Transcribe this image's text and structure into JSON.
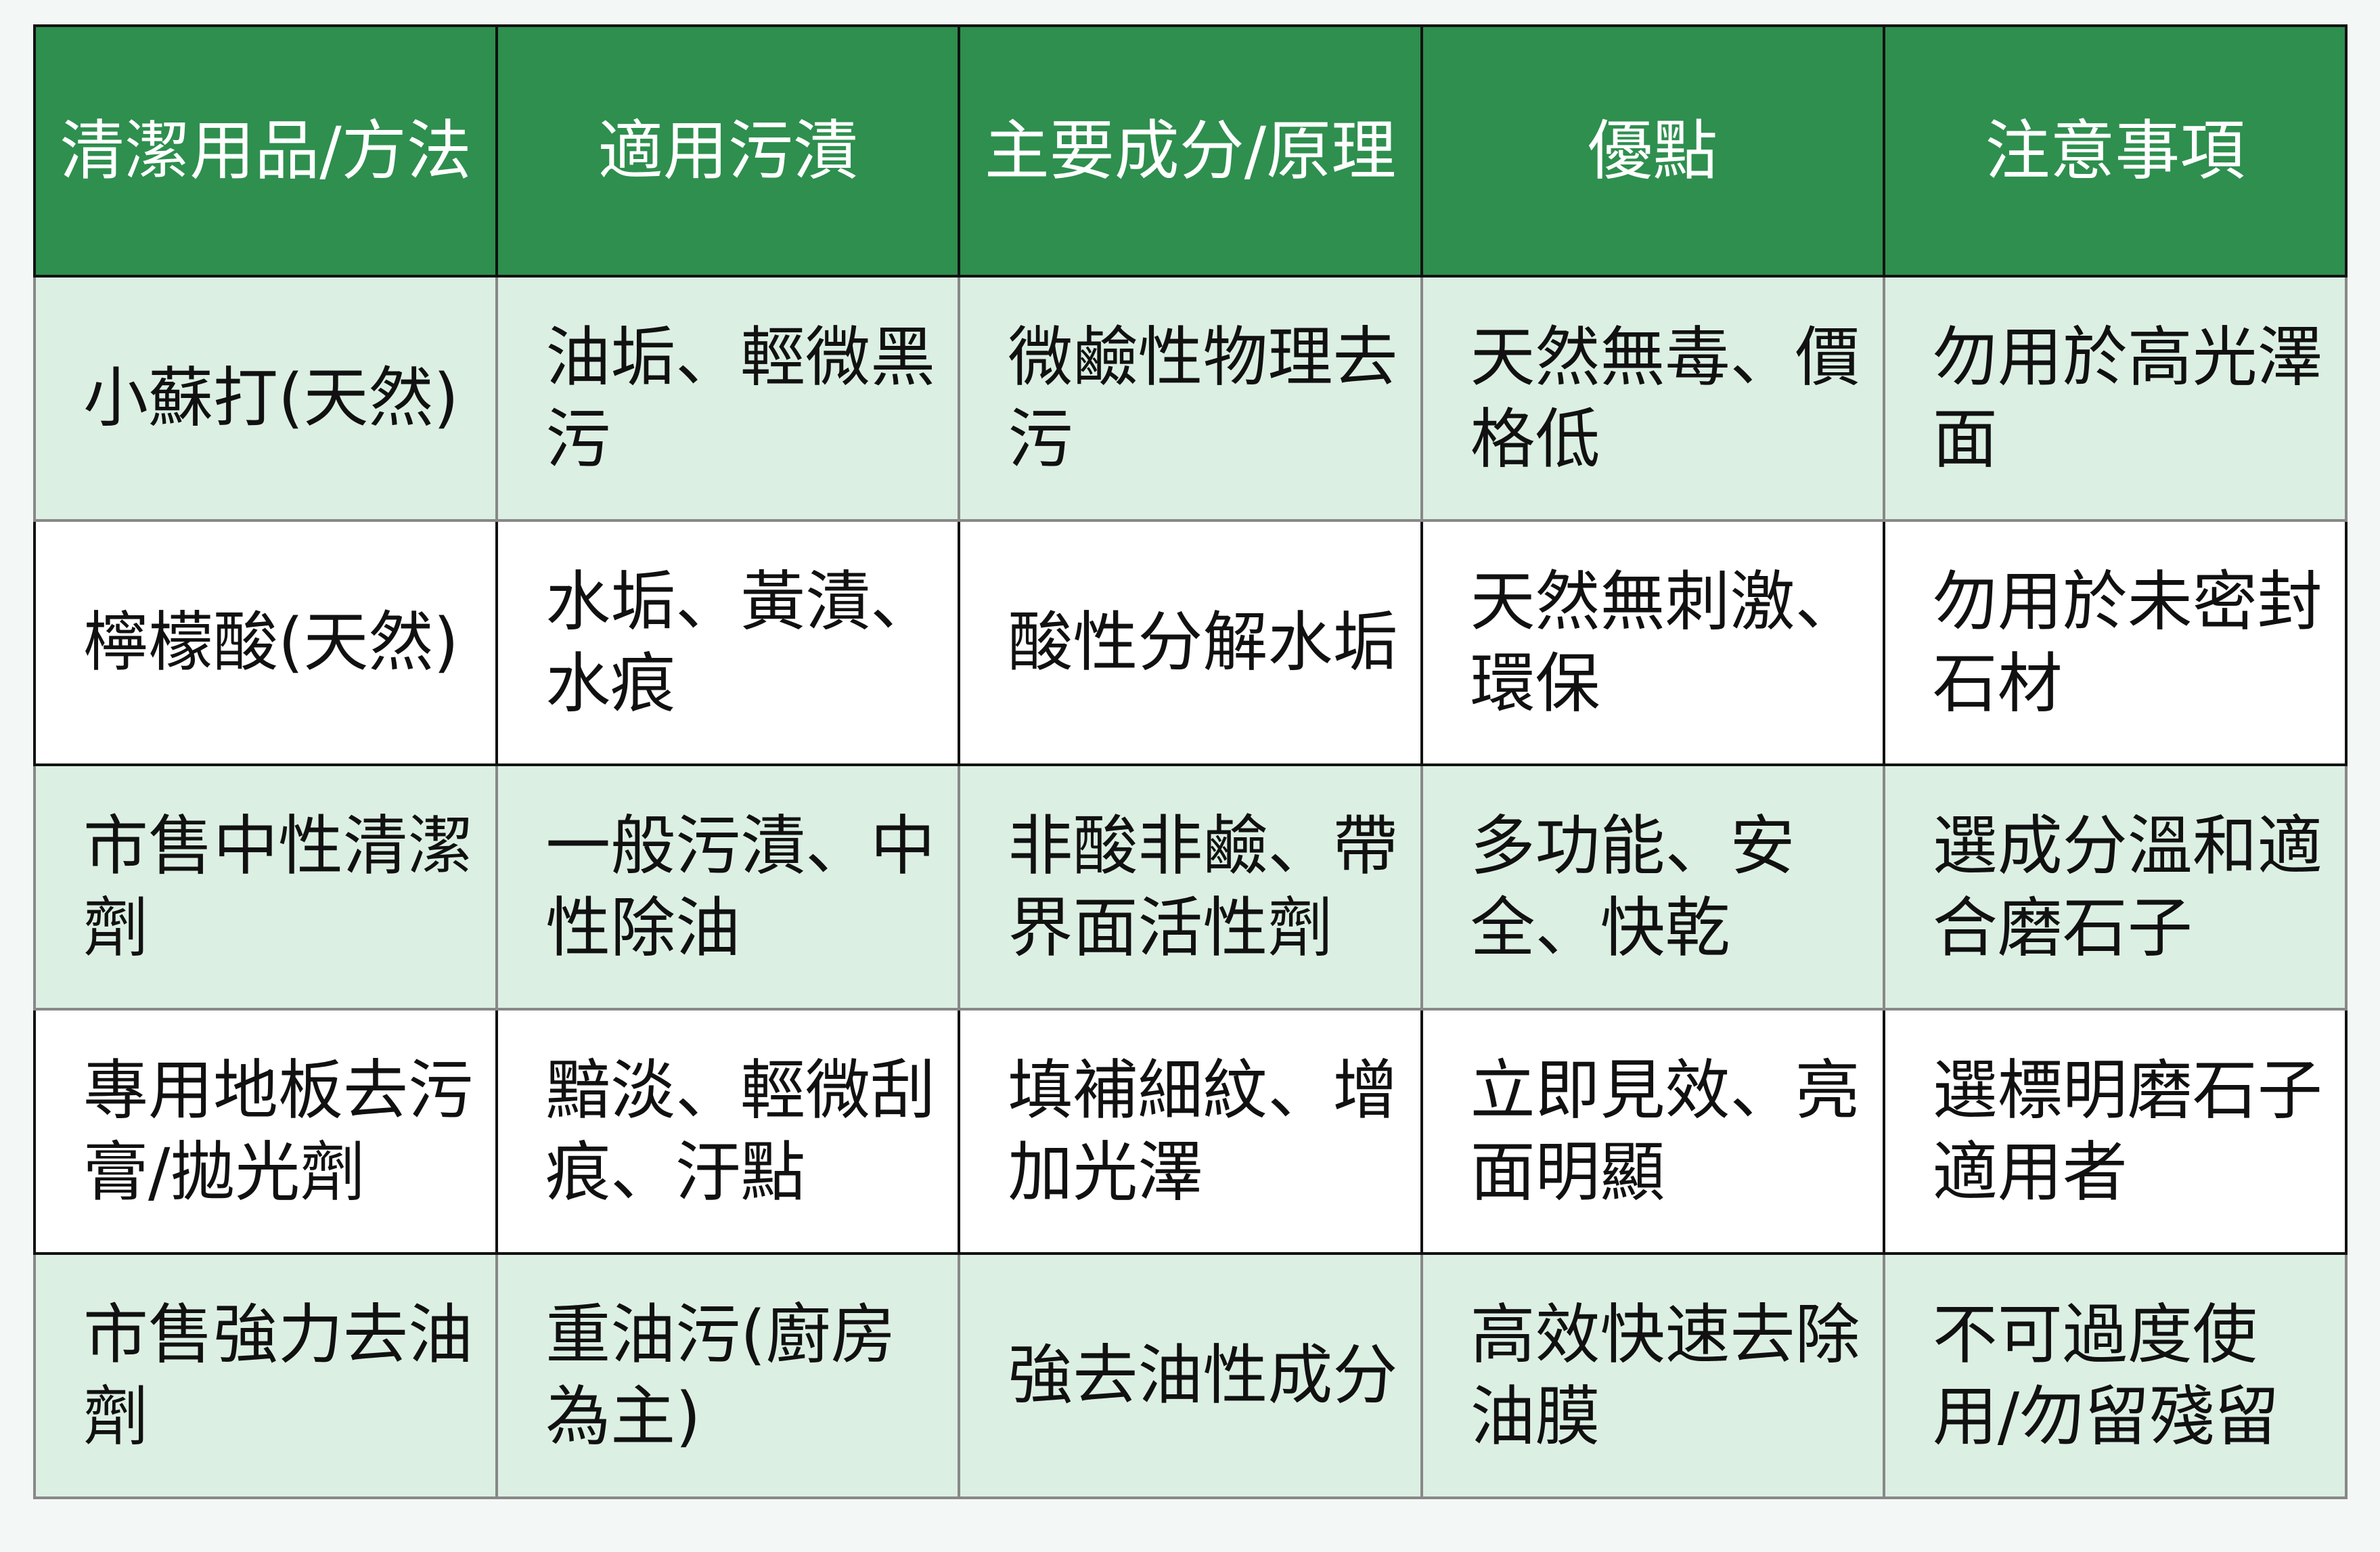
{
  "colors": {
    "header_bg": "#2e8f4e",
    "header_text": "#ffffff",
    "alt_row_bg": "#dcefe3",
    "plain_row_bg": "#ffffff",
    "page_bg": "#f3f7f5"
  },
  "headers": [
    "清潔用品/方法",
    "適用污漬",
    "主要成分/原理",
    "優點",
    "注意事項"
  ],
  "rows": [
    [
      "小蘇打(天然)",
      "油垢、輕微黑污",
      "微鹼性物理去污",
      "天然無毒、價格低",
      "勿用於高光澤面"
    ],
    [
      "檸檬酸(天然)",
      "水垢、黃漬、水痕",
      "酸性分解水垢",
      "天然無刺激、環保",
      "勿用於未密封石材"
    ],
    [
      "市售中性清潔劑",
      "一般污漬、中性除油",
      "非酸非鹼、帶界面活性劑",
      "多功能、安全、快乾",
      "選成分溫和適合磨石子"
    ],
    [
      "專用地板去污膏/拋光劑",
      "黯淡、輕微刮痕、汙點",
      "填補細紋、增加光澤",
      "立即見效、亮面明顯",
      "選標明磨石子適用者"
    ],
    [
      "市售強力去油劑",
      "重油污(廚房為主)",
      "強去油性成分",
      "高效快速去除油膜",
      "不可過度使用/勿留殘留"
    ]
  ]
}
